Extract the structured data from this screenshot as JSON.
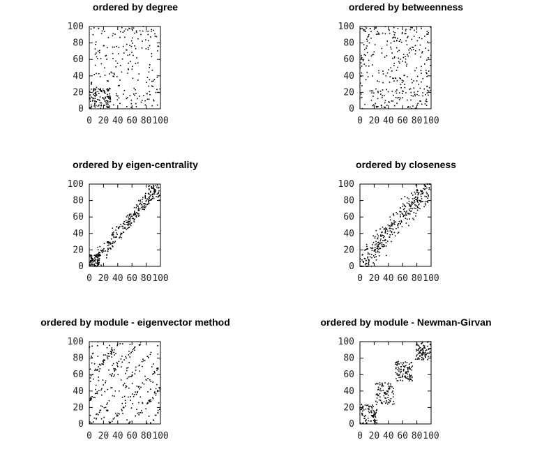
{
  "chart_data": [
    {
      "type": "scatter",
      "title": "ordered by degree",
      "xlim": [
        0,
        100
      ],
      "ylim": [
        0,
        100
      ],
      "xticks": [
        "0",
        "20",
        "40",
        "60",
        "80",
        "100"
      ],
      "yticks": [
        "0",
        "20",
        "40",
        "60",
        "80",
        "100"
      ],
      "pattern": "scattered",
      "density": 320
    },
    {
      "type": "scatter",
      "title": "ordered by betweenness",
      "xlim": [
        0,
        100
      ],
      "ylim": [
        0,
        100
      ],
      "xticks": [
        "0",
        "20",
        "40",
        "60",
        "80",
        "100"
      ],
      "yticks": [
        "0",
        "20",
        "40",
        "60",
        "80",
        "100"
      ],
      "pattern": "random",
      "density": 320
    },
    {
      "type": "scatter",
      "title": "ordered by eigen-centrality",
      "xlim": [
        0,
        100
      ],
      "ylim": [
        0,
        100
      ],
      "xticks": [
        "0",
        "20",
        "40",
        "60",
        "80",
        "100"
      ],
      "yticks": [
        "0",
        "20",
        "40",
        "60",
        "80",
        "100"
      ],
      "pattern": "diagonal-band",
      "density": 360
    },
    {
      "type": "scatter",
      "title": "ordered by closeness",
      "xlim": [
        0,
        100
      ],
      "ylim": [
        0,
        100
      ],
      "xticks": [
        "0",
        "20",
        "40",
        "60",
        "80",
        "100"
      ],
      "yticks": [
        "0",
        "20",
        "40",
        "60",
        "80",
        "100"
      ],
      "pattern": "diagonal-band-wide",
      "density": 340
    },
    {
      "type": "scatter",
      "title": "ordered by module - eigenvector method",
      "xlim": [
        0,
        100
      ],
      "ylim": [
        0,
        100
      ],
      "xticks": [
        "0",
        "20",
        "40",
        "60",
        "80",
        "100"
      ],
      "yticks": [
        "0",
        "20",
        "40",
        "60",
        "80",
        "100"
      ],
      "pattern": "stripes",
      "density": 330
    },
    {
      "type": "scatter",
      "title": "ordered by module - Newman-Girvan",
      "xlim": [
        0,
        100
      ],
      "ylim": [
        0,
        100
      ],
      "xticks": [
        "0",
        "20",
        "40",
        "60",
        "80",
        "100"
      ],
      "yticks": [
        "0",
        "20",
        "40",
        "60",
        "80",
        "100"
      ],
      "pattern": "blocks",
      "density": 360
    }
  ]
}
